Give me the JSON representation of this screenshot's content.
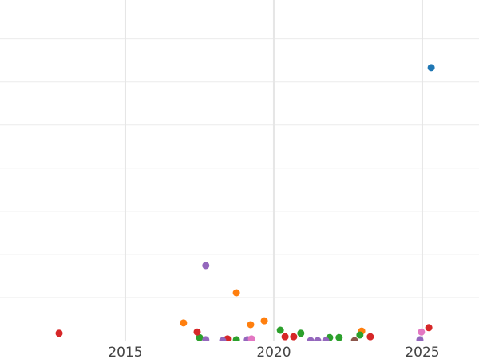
{
  "chart_data": {
    "type": "scatter",
    "title": "",
    "xlabel": "",
    "ylabel": "",
    "xlim": [
      2010.78,
      2026.91
    ],
    "ylim": [
      0,
      7.9
    ],
    "x_ticks": [
      2015,
      2020,
      2025
    ],
    "x_tick_labels": [
      "2015",
      "2020",
      "2025"
    ],
    "y_gridlines": [
      1,
      2,
      3,
      4,
      5,
      6,
      7
    ],
    "grid": true,
    "legend": "none",
    "series": [
      {
        "color": "#1f77b4",
        "points": [
          [
            2025.3,
            6.33
          ]
        ]
      },
      {
        "color": "#ff7f0e",
        "points": [
          [
            2016.96,
            0.41
          ],
          [
            2018.74,
            1.11
          ],
          [
            2019.22,
            0.37
          ],
          [
            2019.68,
            0.46
          ],
          [
            2022.96,
            0.22
          ]
        ]
      },
      {
        "color": "#2ca02c",
        "points": [
          [
            2017.5,
            0.07
          ],
          [
            2018.74,
            0.02
          ],
          [
            2020.22,
            0.24
          ],
          [
            2020.91,
            0.17
          ],
          [
            2021.88,
            0.07
          ],
          [
            2022.2,
            0.07
          ],
          [
            2022.9,
            0.13
          ]
        ]
      },
      {
        "color": "#d62728",
        "points": [
          [
            2012.77,
            0.17
          ],
          [
            2017.42,
            0.2
          ],
          [
            2018.44,
            0.04
          ],
          [
            2020.38,
            0.09
          ],
          [
            2020.67,
            0.09
          ],
          [
            2023.25,
            0.09
          ],
          [
            2025.22,
            0.3
          ]
        ]
      },
      {
        "color": "#9467bd",
        "points": [
          [
            2017.71,
            1.74
          ],
          [
            2017.71,
            0.02
          ],
          [
            2018.28,
            0.0
          ],
          [
            2019.11,
            0.02
          ],
          [
            2021.24,
            0.0
          ],
          [
            2021.48,
            0.0
          ],
          [
            2021.75,
            0.0
          ],
          [
            2024.92,
            0.02
          ]
        ]
      },
      {
        "color": "#8c564b",
        "points": [
          [
            2022.72,
            0.0
          ]
        ]
      },
      {
        "color": "#e377c2",
        "points": [
          [
            2019.25,
            0.04
          ],
          [
            2024.97,
            0.2
          ]
        ]
      }
    ]
  }
}
